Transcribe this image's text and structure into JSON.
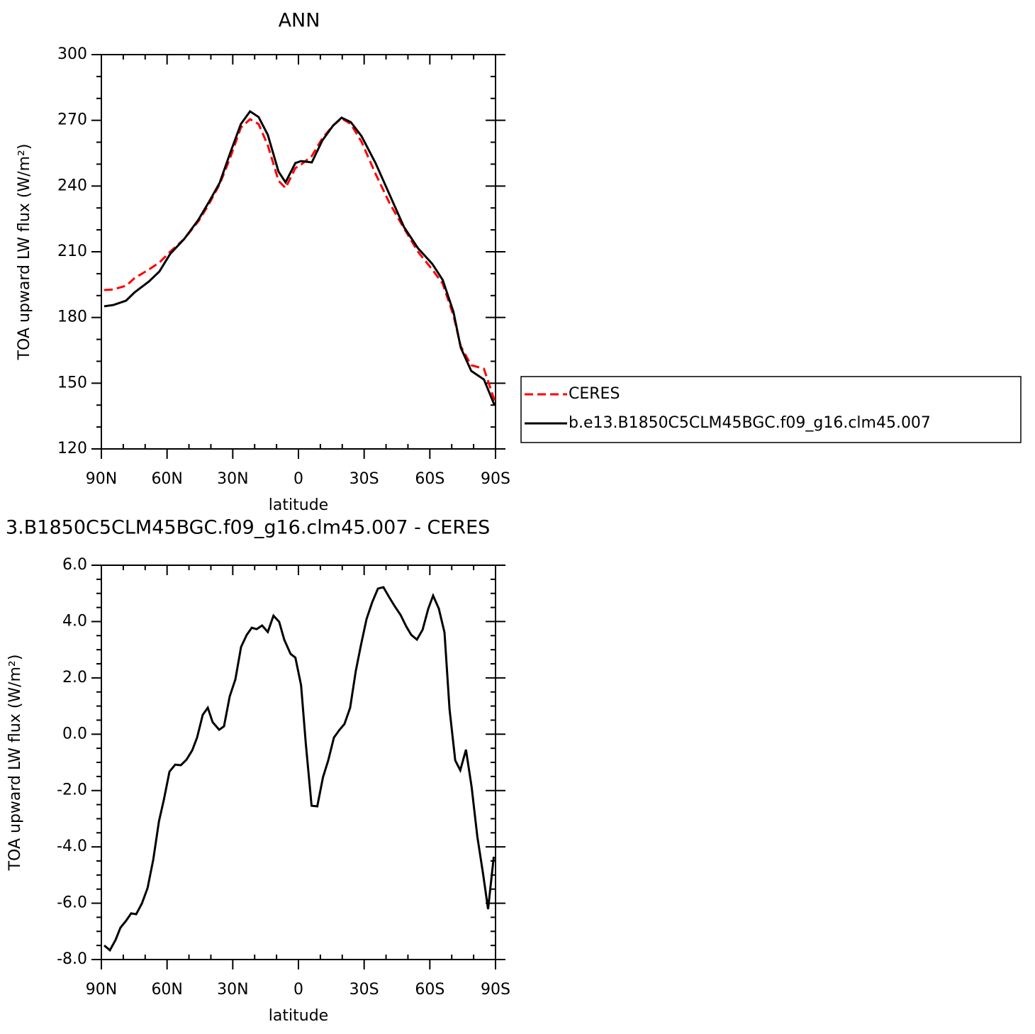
{
  "chart_data": [
    {
      "type": "line",
      "title": "ANN",
      "ylabel": "TOA upward LW flux (W/m²)",
      "xlabel": "latitude",
      "x": [
        88.7,
        84.5,
        78.7,
        74.8,
        68.3,
        63.5,
        58.6,
        52.2,
        45.7,
        40.9,
        36,
        31.1,
        26.3,
        22.1,
        18.2,
        14,
        9.1,
        5.9,
        1.4,
        -1.2,
        -6.1,
        -10.9,
        -15.8,
        -19.7,
        -23.9,
        -28.8,
        -35.2,
        -41.7,
        -48.2,
        -54.6,
        -61.1,
        -65.9,
        -70.8,
        -74.1,
        -78.9,
        -84.7,
        -89.6
      ],
      "series": [
        {
          "name": "CERES",
          "color": "#ff0000",
          "dashed": true,
          "values": [
            192.5,
            192.8,
            194.5,
            198,
            201.9,
            205.1,
            210,
            215.8,
            223.9,
            231.7,
            240.8,
            253.1,
            266.7,
            270.5,
            268.3,
            258.6,
            242.4,
            239.1,
            248.2,
            249.8,
            253.7,
            261.8,
            267.6,
            270.9,
            268.3,
            260.2,
            245.6,
            232,
            220.7,
            210,
            201.9,
            195.4,
            180.9,
            166.9,
            158.2,
            156.6,
            142
          ]
        },
        {
          "name": "b.e13.B1850C5CLM45BGC.f09_g16.clm45.007",
          "color": "#000000",
          "dashed": false,
          "values": [
            185.1,
            185.7,
            187.7,
            191.5,
            196.4,
            201,
            209,
            215.8,
            224.6,
            232.7,
            241.4,
            255.3,
            268.3,
            274.1,
            271.5,
            263.4,
            246.6,
            241.7,
            250.5,
            251.4,
            250.8,
            260.8,
            267.6,
            271.2,
            269.2,
            262.8,
            250.5,
            235.9,
            221.3,
            211.6,
            204.5,
            197.1,
            182.5,
            166.3,
            155.6,
            151.7,
            139.8
          ]
        }
      ],
      "xlim": [
        90,
        -90
      ],
      "xticks": [
        {
          "value": 90,
          "label": "90N"
        },
        {
          "value": 60,
          "label": "60N"
        },
        {
          "value": 30,
          "label": "30N"
        },
        0,
        {
          "value": -30,
          "label": "30S"
        },
        {
          "value": -60,
          "label": "60S"
        },
        {
          "value": -90,
          "label": "90S"
        }
      ],
      "ylim": [
        120,
        300
      ],
      "yticks": [
        120,
        150,
        180,
        210,
        240,
        270,
        300
      ],
      "legend": "right"
    },
    {
      "type": "line",
      "title": "3.B1850C5CLM45BGC.f09_g16.clm45.007 - CERES",
      "ylabel": "TOA upward LW flux (W/m²)",
      "xlabel": "latitude",
      "x": [
        88.7,
        86.1,
        83.5,
        81.3,
        78.7,
        76.4,
        74.1,
        71.5,
        68.9,
        66.3,
        63.7,
        61.5,
        58.9,
        56.3,
        53.7,
        51.1,
        48.5,
        46.3,
        43.7,
        41.4,
        39.2,
        36.2,
        34,
        31.4,
        28.8,
        26.2,
        23.6,
        21.3,
        19.1,
        16.6,
        14,
        11.4,
        8.8,
        6.5,
        3.6,
        1.4,
        -1.2,
        -3.4,
        -6,
        -8.6,
        -11.2,
        -13.6,
        -16.2,
        -18.8,
        -21,
        -23.6,
        -26.2,
        -28.5,
        -31.1,
        -33.7,
        -36.3,
        -38.8,
        -41.4,
        -44,
        -46.6,
        -49.2,
        -51.5,
        -54.1,
        -56.7,
        -59.3,
        -61.5,
        -64.1,
        -66.7,
        -69,
        -71.6,
        -73.9,
        -76.5,
        -79.1,
        -81.7,
        -84.3,
        -86.6,
        -89.2
      ],
      "values": [
        -7.5,
        -7.67,
        -7.3,
        -6.87,
        -6.62,
        -6.36,
        -6.39,
        -6.01,
        -5.46,
        -4.45,
        -3.09,
        -2.34,
        -1.33,
        -1.08,
        -1.1,
        -0.9,
        -0.57,
        -0.12,
        0.69,
        0.94,
        0.43,
        0.16,
        0.28,
        1.34,
        1.95,
        3.1,
        3.53,
        3.78,
        3.73,
        3.86,
        3.63,
        4.21,
        3.99,
        3.36,
        2.85,
        2.72,
        1.74,
        -0.37,
        -2.54,
        -2.56,
        -1.53,
        -0.93,
        -0.12,
        0.16,
        0.36,
        0.94,
        2.25,
        3.15,
        4.09,
        4.69,
        5.17,
        5.22,
        4.87,
        4.54,
        4.24,
        3.83,
        3.53,
        3.36,
        3.71,
        4.46,
        4.92,
        4.46,
        3.61,
        0.89,
        -0.93,
        -1.28,
        -0.55,
        -1.88,
        -3.64,
        -4.95,
        -6.21,
        -4.35
      ],
      "color": "#000000",
      "xlim": [
        90,
        -90
      ],
      "xticks": [
        {
          "value": 90,
          "label": "90N"
        },
        {
          "value": 60,
          "label": "60N"
        },
        {
          "value": 30,
          "label": "30N"
        },
        0,
        {
          "value": -30,
          "label": "30S"
        },
        {
          "value": -60,
          "label": "60S"
        },
        {
          "value": -90,
          "label": "90S"
        }
      ],
      "ylim": [
        -8,
        6
      ],
      "yticks": [
        {
          "value": -8,
          "label": "-8.0"
        },
        {
          "value": -6,
          "label": "-6.0"
        },
        {
          "value": -4,
          "label": "-4.0"
        },
        {
          "value": -2,
          "label": "-2.0"
        },
        {
          "value": 0,
          "label": "0.0"
        },
        {
          "value": 2,
          "label": "2.0"
        },
        {
          "value": 4,
          "label": "4.0"
        },
        {
          "value": 6,
          "label": "6.0"
        }
      ]
    }
  ]
}
